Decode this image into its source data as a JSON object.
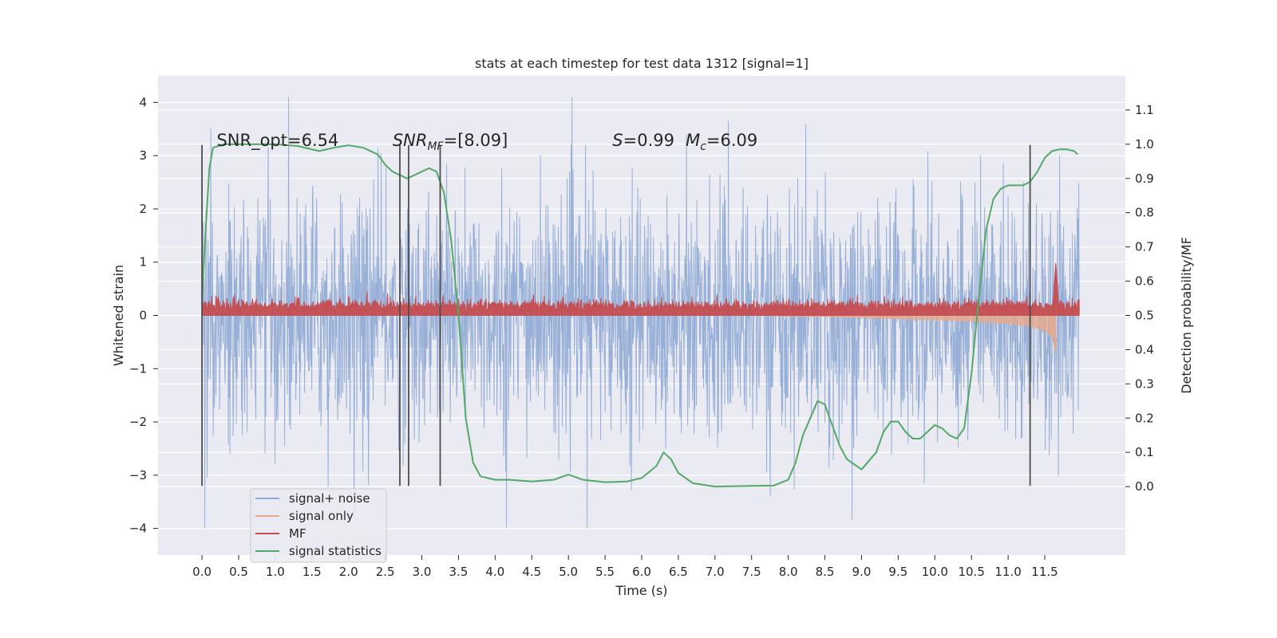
{
  "chart_data": {
    "type": "line",
    "title": "stats at each timestep for test data 1312 [signal=1]",
    "xlabel": "Time (s)",
    "ylabel_left": "Whitened strain",
    "ylabel_right": "Detection probability/MF",
    "xlim": [
      -0.6,
      12.6
    ],
    "ylim_left": [
      -4.5,
      4.5
    ],
    "ylim_right": [
      -0.2,
      1.2
    ],
    "x_ticks": [
      0.0,
      0.5,
      1.0,
      1.5,
      2.0,
      2.5,
      3.0,
      3.5,
      4.0,
      4.5,
      5.0,
      5.5,
      6.0,
      6.5,
      7.0,
      7.5,
      8.0,
      8.5,
      9.0,
      9.5,
      10.0,
      10.5,
      11.0,
      11.5
    ],
    "x_tick_labels": [
      "0.0",
      "0.5",
      "1.0",
      "1.5",
      "2.0",
      "2.5",
      "3.0",
      "3.5",
      "4.0",
      "4.5",
      "5.0",
      "5.5",
      "6.0",
      "6.5",
      "7.0",
      "7.5",
      "8.0",
      "8.5",
      "9.0",
      "9.5",
      "10.0",
      "10.5",
      "11.0",
      "11.5"
    ],
    "y_left_ticks": [
      -4,
      -3,
      -2,
      -1,
      0,
      1,
      2,
      3,
      4
    ],
    "y_left_tick_labels": [
      "−4",
      "−3",
      "−2",
      "−1",
      "0",
      "1",
      "2",
      "3",
      "4"
    ],
    "y_right_ticks": [
      0.0,
      0.1,
      0.2,
      0.3,
      0.4,
      0.5,
      0.6,
      0.7,
      0.8,
      0.9,
      1.0,
      1.1
    ],
    "y_right_tick_labels": [
      "0.0",
      "0.1",
      "0.2",
      "0.3",
      "0.4",
      "0.5",
      "0.6",
      "0.7",
      "0.8",
      "0.9",
      "1.0",
      "1.1"
    ],
    "grid": true,
    "legend_position": "bottom-left",
    "legend": [
      {
        "label": "signal+ noise",
        "color": "#8faad4"
      },
      {
        "label": "signal only",
        "color": "#e8a98b"
      },
      {
        "label": "MF",
        "color": "#c44e52"
      },
      {
        "label": "signal statistics",
        "color": "#55a868"
      }
    ],
    "annotations": [
      {
        "text": "SNR_opt=6.54",
        "x": 0.2,
        "y": 3.3
      },
      {
        "text": "SNR_MF=[8.09]",
        "x": 2.6,
        "y": 3.3
      },
      {
        "text": "S=0.99",
        "x": 5.6,
        "y": 3.3
      },
      {
        "text": "M_c=6.09",
        "x": 6.6,
        "y": 3.3
      }
    ],
    "vertical_lines": [
      {
        "x": 0.0,
        "ymin": -3.2,
        "ymax": 3.2
      },
      {
        "x": 2.7,
        "ymin": -3.2,
        "ymax": 3.2
      },
      {
        "x": 2.82,
        "ymin": -3.2,
        "ymax": 3.2
      },
      {
        "x": 3.25,
        "ymin": -3.2,
        "ymax": 3.2
      },
      {
        "x": 11.3,
        "ymin": -3.2,
        "ymax": 3.2
      }
    ],
    "series": [
      {
        "name": "signal+ noise",
        "axis": "left",
        "kind": "noise-band",
        "color": "#8faad4",
        "x_range": [
          0.0,
          11.97
        ],
        "typical_envelope": [
          -1.3,
          1.3
        ],
        "peak_extent": [
          -4.0,
          4.1
        ]
      },
      {
        "name": "signal only",
        "axis": "left",
        "kind": "chirp",
        "color": "#e8a98b",
        "x": [
          7.5,
          8.0,
          8.5,
          9.0,
          9.5,
          10.0,
          10.5,
          11.0,
          11.3,
          11.5,
          11.6,
          11.65
        ],
        "amplitude": [
          0.0,
          0.01,
          0.02,
          0.04,
          0.06,
          0.08,
          0.11,
          0.15,
          0.2,
          0.28,
          0.4,
          0.7
        ]
      },
      {
        "name": "MF",
        "axis": "left",
        "kind": "band",
        "color": "#c44e52",
        "x_range": [
          0.0,
          11.97
        ],
        "baseline": 0.0,
        "typical_top": 0.3,
        "peak": {
          "x": 11.65,
          "y": 1.0
        }
      },
      {
        "name": "signal statistics",
        "axis": "right",
        "color": "#55a868",
        "x": [
          0.0,
          0.05,
          0.1,
          0.15,
          0.3,
          0.6,
          1.0,
          1.3,
          1.6,
          1.8,
          2.0,
          2.2,
          2.4,
          2.5,
          2.6,
          2.8,
          2.9,
          3.0,
          3.1,
          3.2,
          3.3,
          3.4,
          3.5,
          3.6,
          3.7,
          3.8,
          4.0,
          4.2,
          4.5,
          4.8,
          5.0,
          5.2,
          5.5,
          5.8,
          6.0,
          6.2,
          6.3,
          6.4,
          6.5,
          6.7,
          7.0,
          7.5,
          7.8,
          8.0,
          8.1,
          8.2,
          8.3,
          8.4,
          8.5,
          8.6,
          8.7,
          8.8,
          9.0,
          9.2,
          9.3,
          9.4,
          9.5,
          9.6,
          9.7,
          9.8,
          9.9,
          10.0,
          10.1,
          10.2,
          10.3,
          10.4,
          10.5,
          10.6,
          10.7,
          10.8,
          10.9,
          11.0,
          11.2,
          11.3,
          11.4,
          11.5,
          11.6,
          11.7,
          11.8,
          11.9,
          11.95
        ],
        "y": [
          0.55,
          0.75,
          0.93,
          0.99,
          1.0,
          1.0,
          1.0,
          0.995,
          0.98,
          0.99,
          0.997,
          0.99,
          0.97,
          0.94,
          0.92,
          0.9,
          0.91,
          0.92,
          0.93,
          0.92,
          0.86,
          0.72,
          0.5,
          0.2,
          0.07,
          0.03,
          0.02,
          0.02,
          0.015,
          0.02,
          0.035,
          0.02,
          0.013,
          0.015,
          0.025,
          0.06,
          0.1,
          0.08,
          0.04,
          0.01,
          0.0,
          0.002,
          0.003,
          0.02,
          0.07,
          0.15,
          0.2,
          0.25,
          0.24,
          0.18,
          0.12,
          0.08,
          0.05,
          0.1,
          0.16,
          0.19,
          0.19,
          0.16,
          0.14,
          0.14,
          0.16,
          0.18,
          0.17,
          0.15,
          0.14,
          0.17,
          0.33,
          0.55,
          0.75,
          0.84,
          0.87,
          0.88,
          0.88,
          0.89,
          0.92,
          0.96,
          0.98,
          0.985,
          0.985,
          0.98,
          0.97
        ]
      }
    ]
  }
}
